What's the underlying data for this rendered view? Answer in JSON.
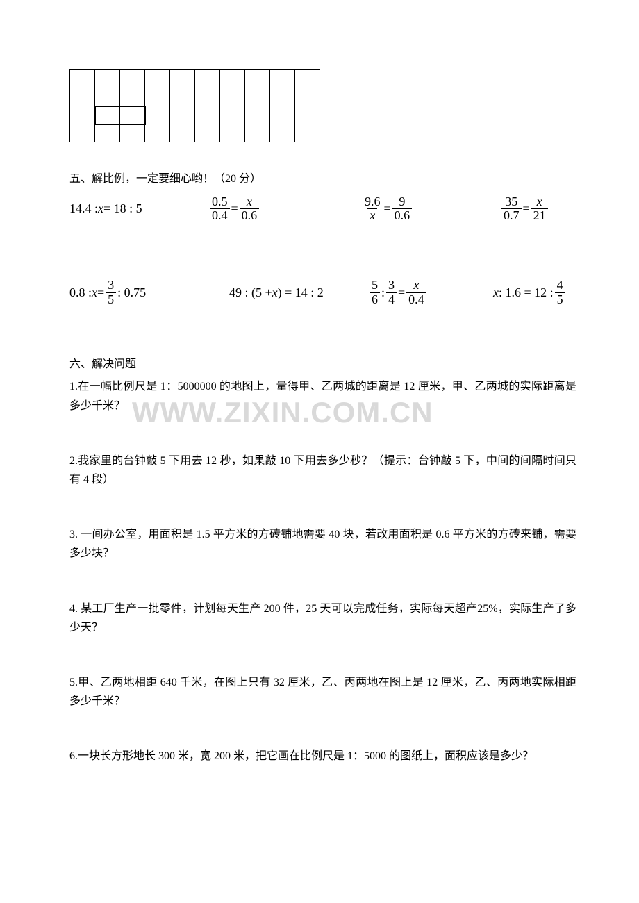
{
  "watermark": "WWW.ZIXIN.COM.CN",
  "grid": {
    "rows": 4,
    "cols": 10,
    "bold_region": {
      "row": 2,
      "col_start": 1,
      "col_end": 2
    }
  },
  "section5": {
    "title": "五、解比例，一定要细心哟！（20 分）",
    "equations_row1": [
      {
        "type": "ratio",
        "text": "14.4 : x = 18 : 5"
      },
      {
        "type": "frac_eq",
        "l_num": "0.5",
        "l_den": "0.4",
        "r_num": "x",
        "r_den": "0.6"
      },
      {
        "type": "frac_eq",
        "l_num": "9.6",
        "l_den": "x",
        "r_num": "9",
        "r_den": "0.6"
      },
      {
        "type": "frac_eq",
        "l_num": "35",
        "l_den": "0.7",
        "r_num": "x",
        "r_den": "21"
      }
    ],
    "equations_row2": [
      {
        "type": "mixed",
        "prefix": "0.8 : x = ",
        "frac_num": "3",
        "frac_den": "5",
        "suffix": " : 0.75"
      },
      {
        "type": "ratio",
        "text": "49 : (5 + x) = 14 : 2"
      },
      {
        "type": "frac_ratio",
        "a_num": "5",
        "a_den": "6",
        "b_num": "3",
        "b_den": "4",
        "r_num": "x",
        "r_den": "0.4"
      },
      {
        "type": "mixed2",
        "prefix": "x : 1.6 = 12 : ",
        "frac_num": "4",
        "frac_den": "5"
      }
    ]
  },
  "section6": {
    "title": "六、解决问题",
    "problems": [
      "1.在一幅比例尺是 1：5000000 的地图上，量得甲、乙两城的距离是 12 厘米，甲、乙两城的实际距离是多少千米？",
      "2.我家里的台钟敲 5 下用去 12 秒，如果敲 10 下用去多少秒？（提示：台钟敲 5 下，中间的间隔时间只有 4 段）",
      "3.  一间办公室，用面积是 1.5 平方米的方砖铺地需要 40 块，若改用面积是 0.6 平方米的方砖来铺，需要多少块？",
      "4.  某工厂生产一批零件，计划每天生产 200 件，25 天可以完成任务，实际每天超产25%，实际生产了多少天？",
      "5.甲、乙两地相距 640 千米，在图上只有 32 厘米，乙、丙两地在图上是 12 厘米，乙、丙两地实际相距多少千米？",
      "6.一块长方形地长 300 米，宽 200 米，把它画在比例尺是 1：5000 的图纸上，面积应该是多少？"
    ]
  }
}
